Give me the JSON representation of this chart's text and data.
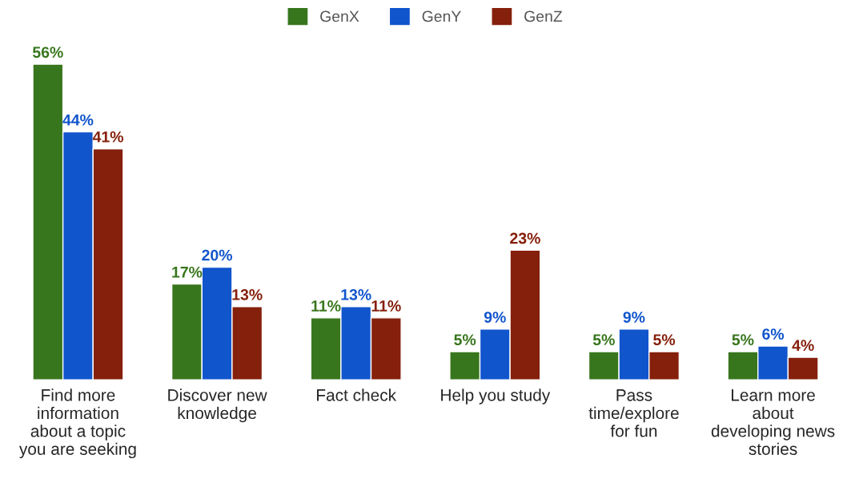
{
  "chart_data": {
    "type": "bar",
    "categories": [
      "Find more information about a topic you are seeking",
      "Discover new knowledge",
      "Fact check",
      "Help you study",
      "Pass time/explore for fun",
      "Learn more about developing news stories"
    ],
    "series": [
      {
        "name": "GenX",
        "color": "#38761d",
        "values": [
          56,
          17,
          11,
          5,
          5,
          5
        ],
        "value_labels": [
          "56%",
          "17%",
          "11%",
          "5%",
          "5%",
          "5%"
        ]
      },
      {
        "name": "GenY",
        "color": "#1155cc",
        "values": [
          44,
          20,
          13,
          9,
          9,
          6
        ],
        "value_labels": [
          "44%",
          "20%",
          "13%",
          "9%",
          "9%",
          "6%"
        ]
      },
      {
        "name": "GenZ",
        "color": "#85200c",
        "values": [
          41,
          13,
          11,
          23,
          5,
          4
        ],
        "value_labels": [
          "41%",
          "13%",
          "11%",
          "23%",
          "5%",
          "4%"
        ]
      }
    ],
    "legend": "top",
    "grid": false
  }
}
